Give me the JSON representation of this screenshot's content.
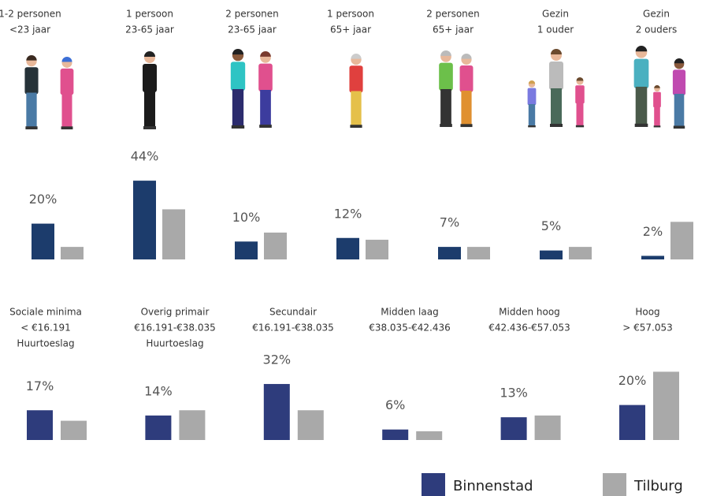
{
  "chart_data": [
    {
      "type": "bar",
      "categories": [
        [
          "1-2 personen",
          "<23 jaar"
        ],
        [
          "1 persoon",
          "23-65 jaar"
        ],
        [
          "2 personen",
          "23-65 jaar"
        ],
        [
          "1 persoon",
          "65+ jaar"
        ],
        [
          "2 personen",
          "65+ jaar"
        ],
        [
          "Gezin",
          "1 ouder"
        ],
        [
          "Gezin",
          "2 ouders"
        ]
      ],
      "series": [
        {
          "color": "#1c3c6c",
          "values": [
            20,
            44,
            10,
            12,
            7,
            5,
            2
          ],
          "value_labels": [
            "20%",
            "44%",
            "10%",
            "12%",
            "7%",
            "5%",
            "2%"
          ]
        },
        {
          "color": "#a9a9a9",
          "values": [
            7,
            28,
            15,
            11,
            7,
            7,
            21
          ]
        }
      ]
    },
    {
      "type": "bar",
      "categories": [
        [
          "Sociale minima",
          "< €16.191",
          "Huurtoeslag"
        ],
        [
          "Overig primair",
          "€16.191-€38.035",
          "Huurtoeslag"
        ],
        [
          "Secundair",
          "€16.191-€38.035"
        ],
        [
          "Midden laag",
          "€38.035-€42.436"
        ],
        [
          "Midden hoog",
          "€42.436-€57.053"
        ],
        [
          "Hoog",
          "> €57.053"
        ]
      ],
      "series": [
        {
          "name": "Binnenstad",
          "color": "#2e3c7c",
          "values": [
            17,
            14,
            32,
            6,
            13,
            20
          ],
          "value_labels": [
            "17%",
            "14%",
            "32%",
            "6%",
            "13%",
            "20%"
          ]
        },
        {
          "name": "Tilburg",
          "color": "#a9a9a9",
          "values": [
            11,
            17,
            17,
            5,
            14,
            39
          ]
        }
      ]
    }
  ]
}
